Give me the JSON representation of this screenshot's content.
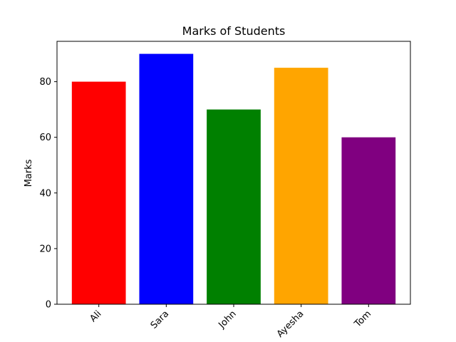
{
  "chart_data": {
    "type": "bar",
    "title": "Marks of Students",
    "xlabel": "",
    "ylabel": "Marks",
    "categories": [
      "Ali",
      "Sara",
      "John",
      "Ayesha",
      "Tom"
    ],
    "values": [
      80,
      90,
      70,
      85,
      60
    ],
    "colors": [
      "#ff0000",
      "#0000ff",
      "#008000",
      "#ffa500",
      "#800080"
    ],
    "ylim": [
      0,
      94.5
    ],
    "yticks": [
      0,
      20,
      40,
      60,
      80
    ],
    "xtick_rotation": 45,
    "grid": false,
    "legend": "none"
  }
}
